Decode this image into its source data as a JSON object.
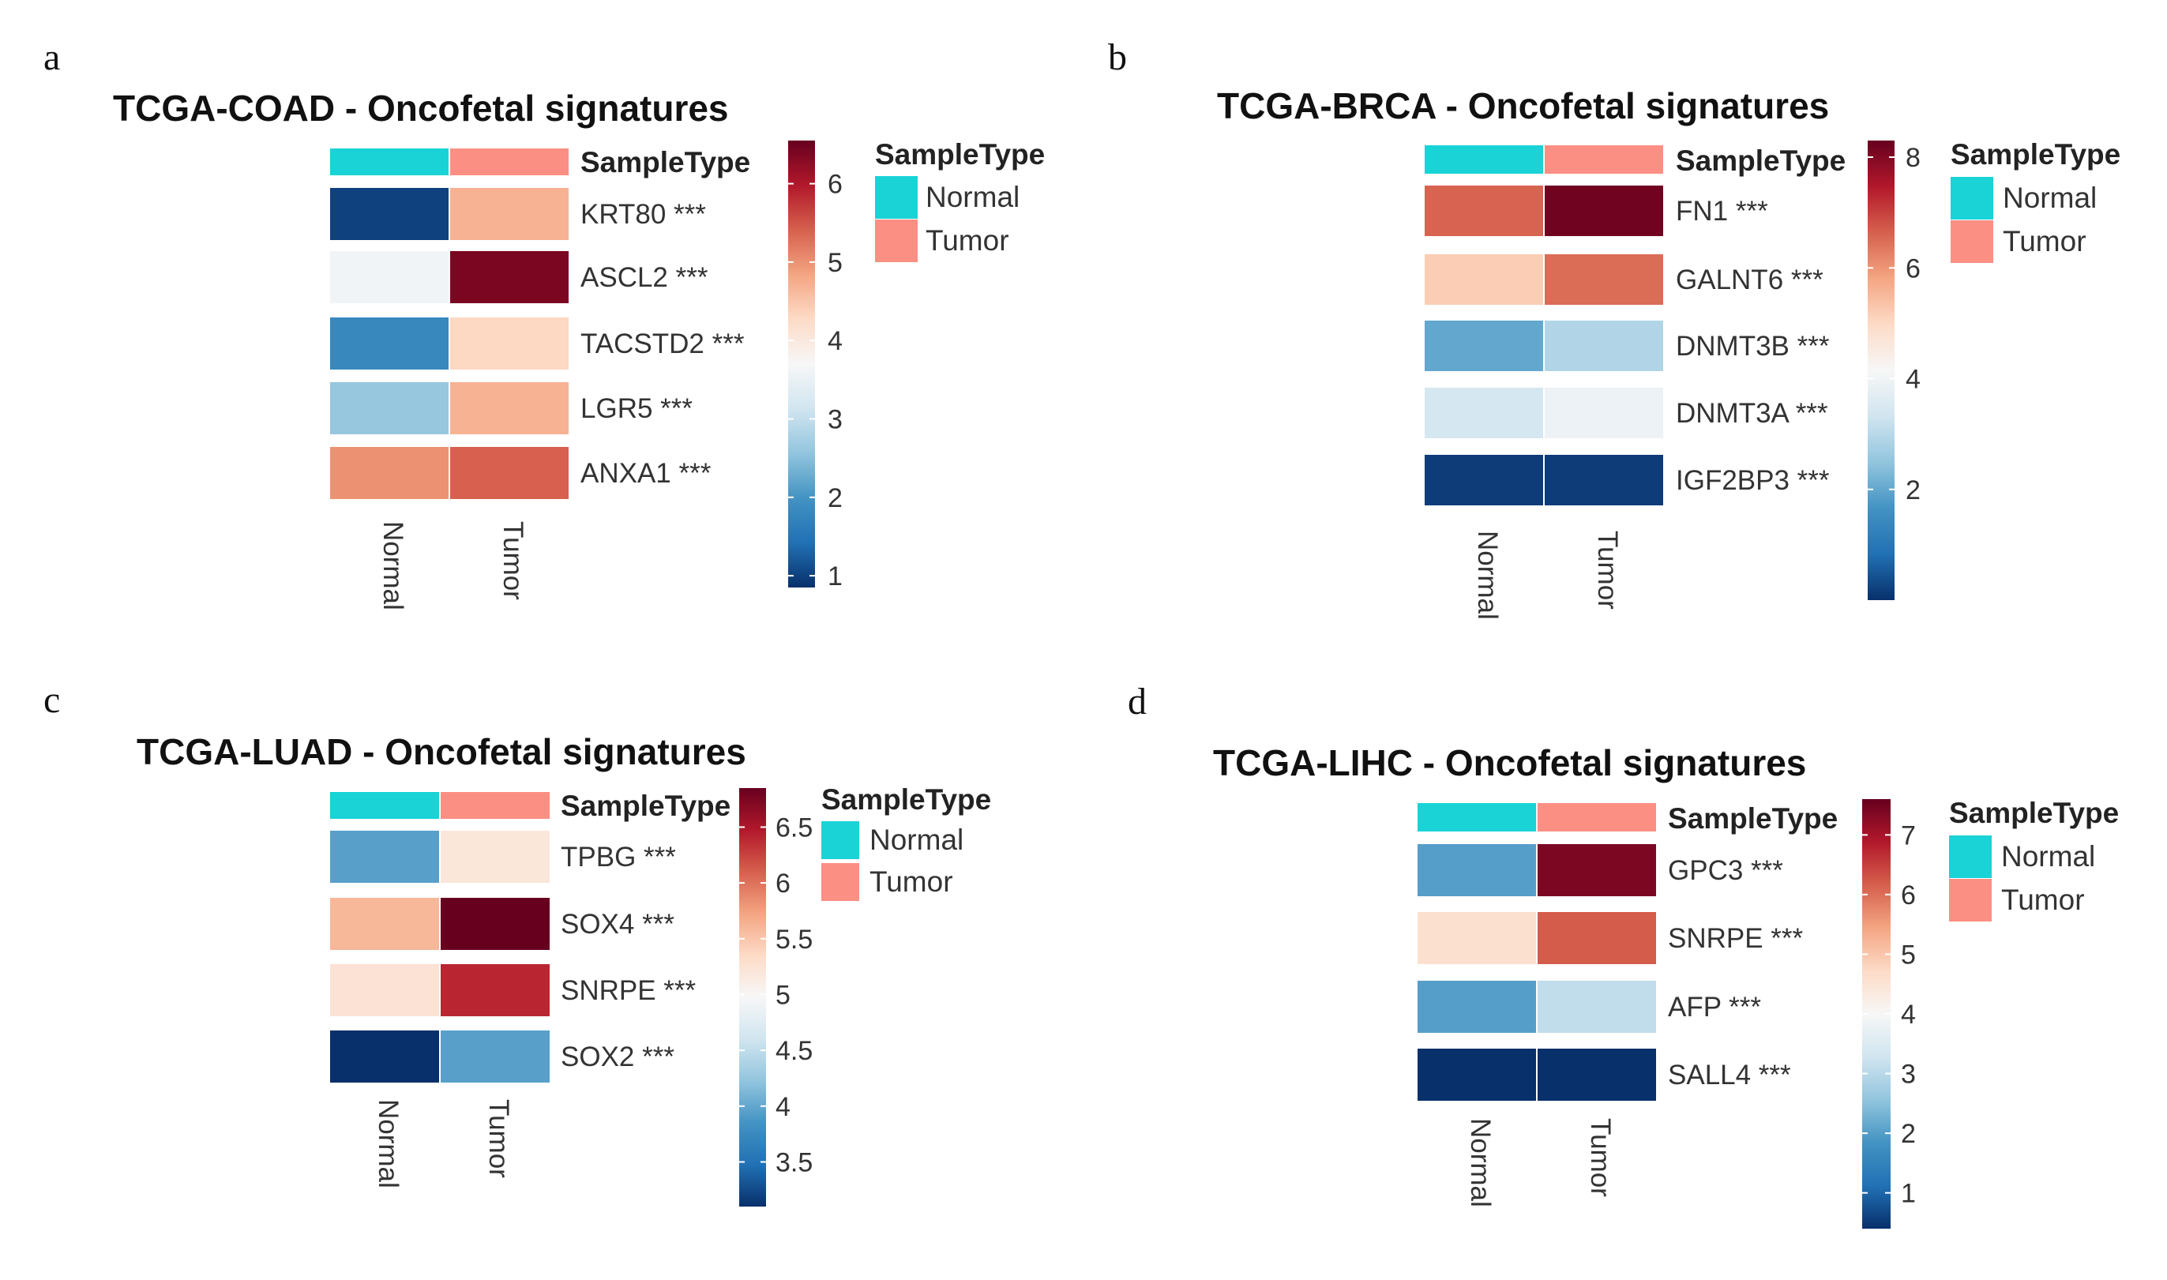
{
  "sample_type_header": "SampleType",
  "colors": {
    "normal": "#19d3d6",
    "tumor": "#fb8f83",
    "scale": [
      "#08306b",
      "#2171b5",
      "#4393c3",
      "#92c5de",
      "#d1e5f0",
      "#f7f7f7",
      "#fddbc7",
      "#f4a582",
      "#d6604d",
      "#b2182b",
      "#67001f"
    ]
  },
  "chart_data": [
    {
      "type": "heatmap",
      "panel": "a",
      "title": "TCGA-COAD - Oncofetal signatures",
      "columns": [
        "Normal",
        "Tumor"
      ],
      "legend": {
        "title": "SampleType",
        "items": [
          "Normal",
          "Tumor"
        ]
      },
      "rows": [
        {
          "gene": "KRT80 ***",
          "values": [
            1.0,
            4.7
          ]
        },
        {
          "gene": "ASCL2 ***",
          "values": [
            3.6,
            6.4
          ]
        },
        {
          "gene": "TACSTD2 ***",
          "values": [
            1.8,
            4.3
          ]
        },
        {
          "gene": "LGR5 ***",
          "values": [
            2.6,
            4.7
          ]
        },
        {
          "gene": "ANXA1 ***",
          "values": [
            5.0,
            5.4
          ]
        }
      ],
      "scale": {
        "min": 0.85,
        "max": 6.55,
        "ticks": [
          1,
          2,
          3,
          4,
          5,
          6
        ]
      }
    },
    {
      "type": "heatmap",
      "panel": "b",
      "title": "TCGA-BRCA - Oncofetal signatures",
      "columns": [
        "Normal",
        "Tumor"
      ],
      "legend": {
        "title": "SampleType",
        "items": [
          "Normal",
          "Tumor"
        ]
      },
      "rows": [
        {
          "gene": "FN1 ***",
          "values": [
            6.6,
            8.2
          ]
        },
        {
          "gene": "GALNT6 ***",
          "values": [
            5.2,
            6.5
          ]
        },
        {
          "gene": "DNMT3B ***",
          "values": [
            2.0,
            2.9
          ]
        },
        {
          "gene": "DNMT3A ***",
          "values": [
            3.4,
            3.9
          ]
        },
        {
          "gene": "IGF2BP3 ***",
          "values": [
            0.15,
            0.15
          ]
        }
      ],
      "scale": {
        "min": 0.0,
        "max": 8.3,
        "ticks": [
          2,
          4,
          6,
          8
        ]
      }
    },
    {
      "type": "heatmap",
      "panel": "c",
      "title": "TCGA-LUAD - Oncofetal signatures",
      "columns": [
        "Normal",
        "Tumor"
      ],
      "legend": {
        "title": "SampleType",
        "items": [
          "Normal",
          "Tumor"
        ]
      },
      "rows": [
        {
          "gene": "TPBG ***",
          "values": [
            3.95,
            5.2
          ]
        },
        {
          "gene": "SOX4 ***",
          "values": [
            5.6,
            6.85
          ]
        },
        {
          "gene": "SNRPE ***",
          "values": [
            5.25,
            6.4
          ]
        },
        {
          "gene": "SOX2 ***",
          "values": [
            3.1,
            3.95
          ]
        }
      ],
      "scale": {
        "min": 3.1,
        "max": 6.85,
        "ticks": [
          3.5,
          4,
          4.5,
          5,
          5.5,
          6,
          6.5
        ]
      }
    },
    {
      "type": "heatmap",
      "panel": "d",
      "title": "TCGA-LIHC - Oncofetal signatures",
      "columns": [
        "Normal",
        "Tumor"
      ],
      "legend": {
        "title": "SampleType",
        "items": [
          "Normal",
          "Tumor"
        ]
      },
      "rows": [
        {
          "gene": "GPC3 ***",
          "values": [
            2.0,
            7.4
          ]
        },
        {
          "gene": "SNRPE ***",
          "values": [
            4.6,
            6.2
          ]
        },
        {
          "gene": "AFP ***",
          "values": [
            2.0,
            3.1
          ]
        },
        {
          "gene": "SALL4 ***",
          "values": [
            0.4,
            0.4
          ]
        }
      ],
      "scale": {
        "min": 0.4,
        "max": 7.6,
        "ticks": [
          1,
          2,
          3,
          4,
          5,
          6,
          7
        ]
      }
    }
  ]
}
